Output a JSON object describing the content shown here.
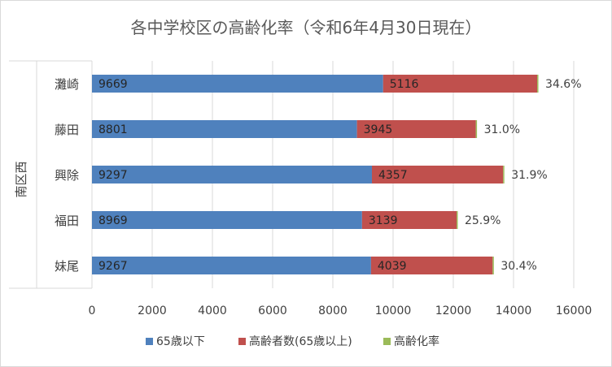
{
  "chart_data": {
    "type": "bar",
    "orientation": "horizontal",
    "stacked": true,
    "title": "各中学校区の高齢化率（令和6年4月30日現在）",
    "group_label": "南区西",
    "categories": [
      "妹尾",
      "福田",
      "興除",
      "藤田",
      "灘崎"
    ],
    "series": [
      {
        "name": "65歳以下",
        "color": "#4f81bd",
        "values": [
          9267,
          8969,
          9297,
          8801,
          9669
        ]
      },
      {
        "name": "高齢者数(65歳以上)",
        "color": "#c0504d",
        "values": [
          4039,
          3139,
          4357,
          3945,
          5116
        ]
      }
    ],
    "rate_series": {
      "name": "高齢化率",
      "color": "#9bbb59",
      "labels": [
        "30.4%",
        "25.9%",
        "31.9%",
        "31.0%",
        "34.6%"
      ]
    },
    "xlim": [
      0,
      16000
    ],
    "xticks": [
      0,
      2000,
      4000,
      6000,
      8000,
      10000,
      12000,
      14000,
      16000
    ],
    "grid": true,
    "legend_position": "bottom"
  }
}
